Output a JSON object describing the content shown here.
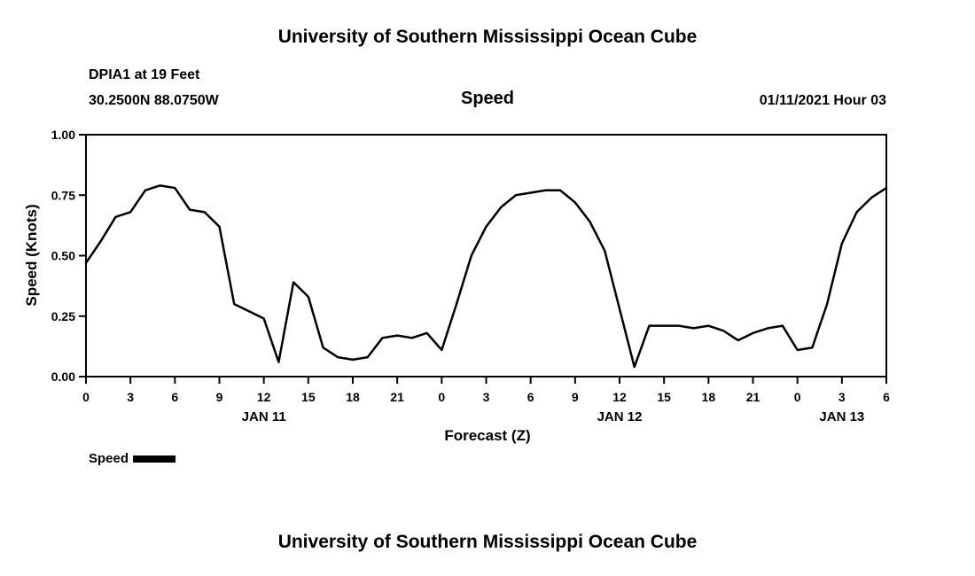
{
  "titles": {
    "top": "University of Southern Mississippi Ocean Cube",
    "bottom": "University of Southern Mississippi Ocean Cube"
  },
  "header": {
    "station": "DPIA1 at 19 Feet",
    "location": "30.2500N 88.0750W",
    "plot_title": "Speed",
    "datetime": "01/11/2021 Hour 03"
  },
  "legend": {
    "label": "Speed",
    "color": "#000000"
  },
  "chart_data": {
    "type": "line",
    "title": "Speed",
    "xlabel": "Forecast (Z)",
    "ylabel": "Speed (Knots)",
    "ylim": [
      0.0,
      1.0
    ],
    "yticks": [
      0.0,
      0.25,
      0.5,
      0.75,
      1.0
    ],
    "ytick_labels": [
      "0.00",
      "0.25",
      "0.50",
      "0.75",
      "1.00"
    ],
    "xlim_hours": [
      0,
      54
    ],
    "xticks_hours": [
      0,
      3,
      6,
      9,
      12,
      15,
      18,
      21,
      24,
      27,
      30,
      33,
      36,
      39,
      42,
      45,
      48,
      51,
      54
    ],
    "xtick_labels": [
      "0",
      "3",
      "6",
      "9",
      "12",
      "15",
      "18",
      "21",
      "0",
      "3",
      "6",
      "9",
      "12",
      "15",
      "18",
      "21",
      "0",
      "3",
      "6"
    ],
    "day_labels": [
      {
        "label": "JAN 11",
        "hour": 12
      },
      {
        "label": "JAN 12",
        "hour": 36
      },
      {
        "label": "JAN 13",
        "hour": 51
      }
    ],
    "grid": false,
    "legend_position": "bottom-left",
    "line_color": "#000000",
    "series": [
      {
        "name": "Speed",
        "x": [
          0,
          1,
          2,
          3,
          4,
          5,
          6,
          7,
          8,
          9,
          10,
          11,
          12,
          13,
          14,
          15,
          16,
          17,
          18,
          19,
          20,
          21,
          22,
          23,
          24,
          25,
          26,
          27,
          28,
          29,
          30,
          31,
          32,
          33,
          34,
          35,
          36,
          37,
          38,
          39,
          40,
          41,
          42,
          43,
          44,
          45,
          46,
          47,
          48,
          49,
          50,
          51,
          52,
          53,
          54
        ],
        "y": [
          0.47,
          0.56,
          0.66,
          0.68,
          0.77,
          0.79,
          0.78,
          0.69,
          0.68,
          0.62,
          0.3,
          0.27,
          0.24,
          0.06,
          0.39,
          0.33,
          0.12,
          0.08,
          0.07,
          0.08,
          0.16,
          0.17,
          0.16,
          0.18,
          0.11,
          0.3,
          0.5,
          0.62,
          0.7,
          0.75,
          0.76,
          0.77,
          0.77,
          0.72,
          0.64,
          0.52,
          0.28,
          0.04,
          0.21,
          0.21,
          0.21,
          0.2,
          0.21,
          0.19,
          0.15,
          0.18,
          0.2,
          0.21,
          0.11,
          0.12,
          0.3,
          0.55,
          0.68,
          0.74,
          0.78
        ]
      }
    ]
  }
}
